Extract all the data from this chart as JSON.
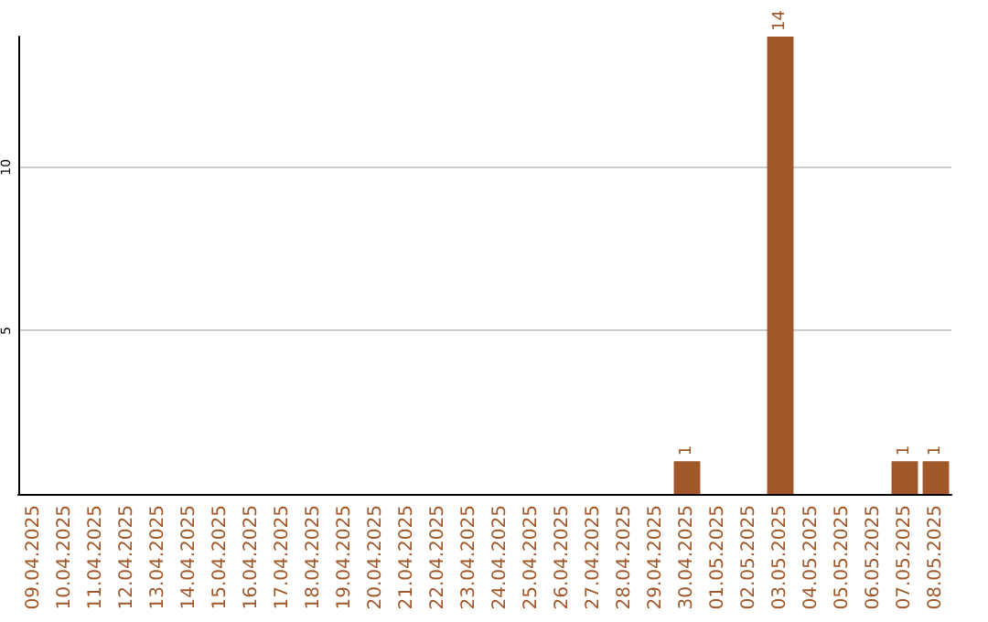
{
  "chart_data": {
    "type": "bar",
    "categories": [
      "09.04.2025",
      "10.04.2025",
      "11.04.2025",
      "12.04.2025",
      "13.04.2025",
      "14.04.2025",
      "15.04.2025",
      "16.04.2025",
      "17.04.2025",
      "18.04.2025",
      "19.04.2025",
      "20.04.2025",
      "21.04.2025",
      "22.04.2025",
      "23.04.2025",
      "24.04.2025",
      "25.04.2025",
      "26.04.2025",
      "27.04.2025",
      "28.04.2025",
      "29.04.2025",
      "30.04.2025",
      "01.05.2025",
      "02.05.2025",
      "03.05.2025",
      "04.05.2025",
      "05.05.2025",
      "06.05.2025",
      "07.05.2025",
      "08.05.2025"
    ],
    "values": [
      0,
      0,
      0,
      0,
      0,
      0,
      0,
      0,
      0,
      0,
      0,
      0,
      0,
      0,
      0,
      0,
      0,
      0,
      0,
      0,
      0,
      1,
      0,
      0,
      14,
      0,
      0,
      0,
      1,
      1
    ],
    "value_labels": [
      null,
      null,
      null,
      null,
      null,
      null,
      null,
      null,
      null,
      null,
      null,
      null,
      null,
      null,
      null,
      null,
      null,
      null,
      null,
      null,
      null,
      "1",
      null,
      null,
      "14",
      null,
      null,
      null,
      "1",
      "1"
    ],
    "color": "#a0572a",
    "ylim": [
      0,
      14
    ],
    "yticks": [
      5,
      10
    ],
    "grid": "y"
  }
}
